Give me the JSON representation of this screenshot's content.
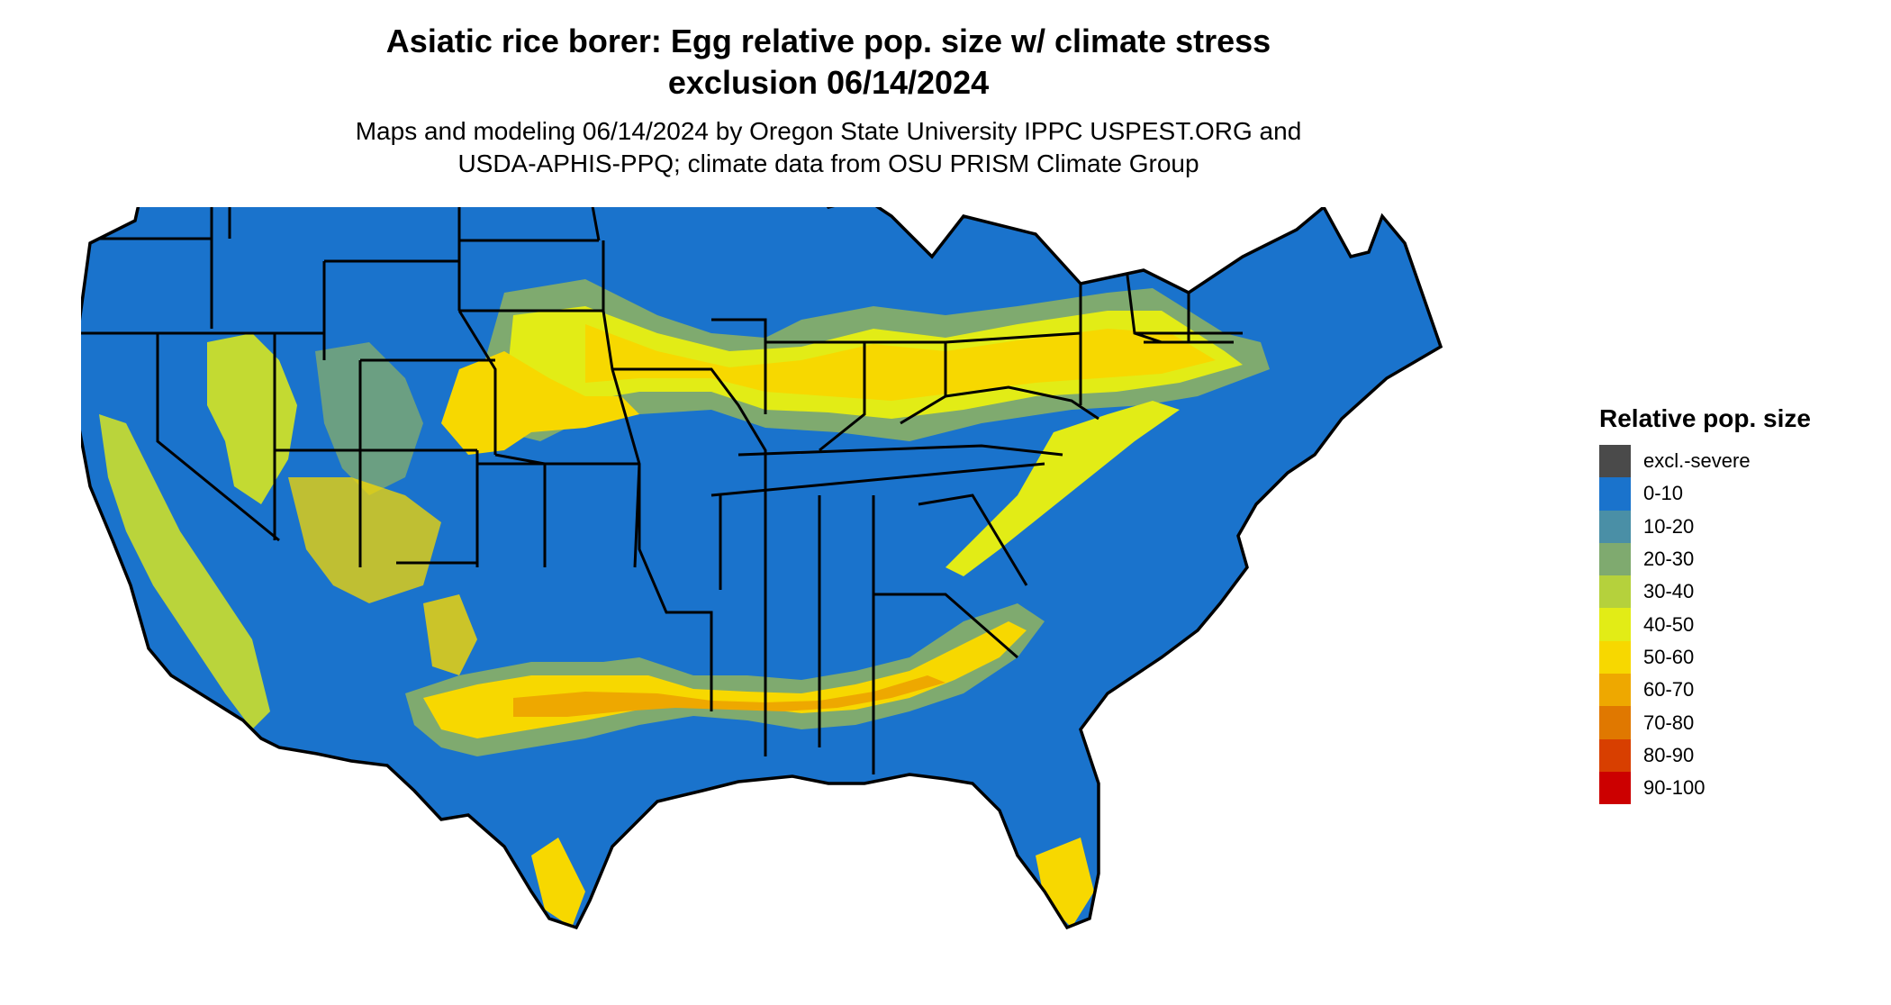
{
  "map": {
    "title_line1": "Asiatic rice borer: Egg relative pop. size w/ climate stress",
    "title_line2": "exclusion 06/14/2024",
    "subtitle_line1": "Maps and modeling 06/14/2024 by Oregon State University IPPC USPEST.ORG and",
    "subtitle_line2": "USDA-APHIS-PPQ; climate data from OSU PRISM Climate Group",
    "base_color": "#1a73cc",
    "border_color": "#000000"
  },
  "legend": {
    "title": "Relative pop. size",
    "items": [
      {
        "label": "excl.-severe",
        "color": "#4a4a4a"
      },
      {
        "label": "0-10",
        "color": "#1a73cc"
      },
      {
        "label": "10-20",
        "color": "#4a8fa6"
      },
      {
        "label": "20-30",
        "color": "#7faa6f"
      },
      {
        "label": "30-40",
        "color": "#b5d13c"
      },
      {
        "label": "40-50",
        "color": "#e2ec16"
      },
      {
        "label": "50-60",
        "color": "#f7d800"
      },
      {
        "label": "60-70",
        "color": "#eea800"
      },
      {
        "label": "70-80",
        "color": "#e07800"
      },
      {
        "label": "80-90",
        "color": "#d83f00"
      },
      {
        "label": "90-100",
        "color": "#cc0000"
      }
    ]
  }
}
